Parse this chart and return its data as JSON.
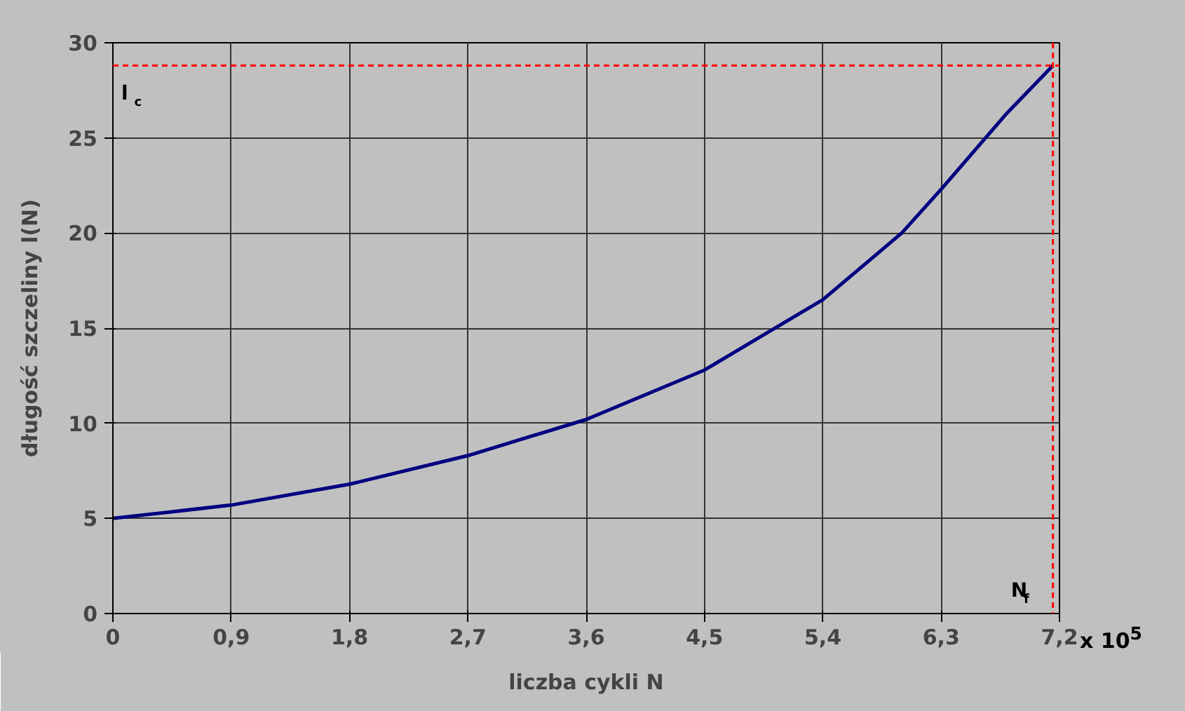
{
  "chart_data": {
    "type": "line",
    "xlabel": "liczba cykli N",
    "ylabel": "długość szczeliny l(N)",
    "annotations": [
      "x 10$^{5}$"
    ],
    "xlim": [
      0,
      7.2
    ],
    "ylim": [
      0,
      30
    ],
    "xticks": [
      {
        "value": 0,
        "label": "0"
      },
      {
        "value": 0.9,
        "label": "0,9"
      },
      {
        "value": 1.8,
        "label": "1,8"
      },
      {
        "value": 2.7,
        "label": "2,7"
      },
      {
        "value": 3.6,
        "label": "3,6"
      },
      {
        "value": 4.5,
        "label": "4,5"
      },
      {
        "value": 5.4,
        "label": "5,4"
      },
      {
        "value": 6.3,
        "label": "6,3"
      },
      {
        "value": 7.2,
        "label": "7,2"
      }
    ],
    "yticks": [
      0,
      5,
      10,
      15,
      20,
      25,
      30
    ],
    "x": [
      0,
      0.9,
      1.8,
      2.7,
      3.6,
      4.5,
      5.4,
      6.0,
      6.3,
      6.8,
      7.15
    ],
    "series": [
      {
        "color": "#000080",
        "values": [
          5,
          5.7,
          6.8,
          8.3,
          10.2,
          12.8,
          16.5,
          20,
          22.3,
          26.3,
          28.8
        ]
      }
    ],
    "ref_lines": [
      {
        "axis": "y",
        "value": 28.8,
        "label": "l$_{c}$",
        "color": "#ff0000",
        "line_style": "dashed"
      },
      {
        "axis": "x",
        "value": 7.15,
        "label": "N$_{f}$",
        "color": "#ff0000",
        "line_style": "dashed"
      }
    ],
    "grid": true,
    "marker": "none",
    "line_style": "solid"
  }
}
